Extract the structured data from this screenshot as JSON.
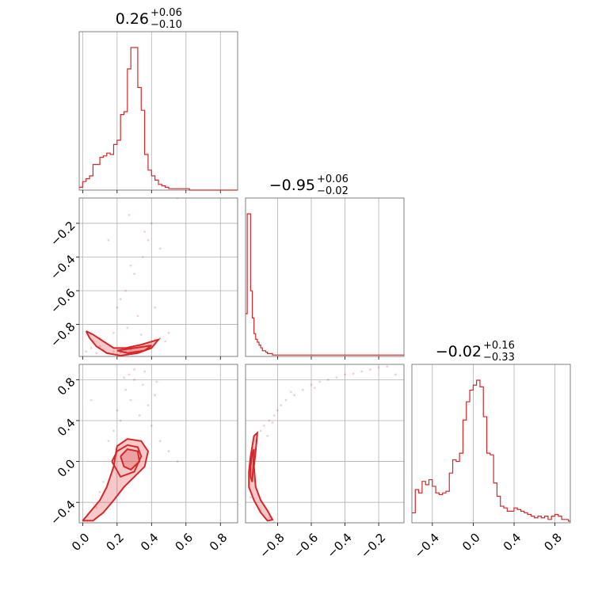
{
  "chart_data": {
    "type": "corner",
    "color": "#d62728",
    "params": [
      {
        "title": {
          "median": "0.26",
          "plus": "+0.06",
          "minus": "−0.10"
        },
        "range": [
          -0.02,
          0.9
        ],
        "ticks": [
          0.0,
          0.2,
          0.4,
          0.6,
          0.8
        ],
        "tick_labels": [
          "0.0",
          "0.2",
          "0.4",
          "0.6",
          "0.8"
        ],
        "histogram": {
          "bin_start": -0.02,
          "bin_width": 0.02,
          "counts": [
            2,
            6,
            8,
            10,
            18,
            18,
            23,
            24,
            26,
            25,
            32,
            35,
            53,
            55,
            85,
            100,
            100,
            72,
            56,
            25,
            14,
            10,
            7,
            4,
            3,
            2,
            1,
            1,
            1,
            1,
            1,
            1,
            0,
            0,
            0,
            0,
            0,
            0,
            0,
            0,
            0,
            0,
            0,
            0,
            0,
            0
          ]
        }
      },
      {
        "title": {
          "median": "−0.95",
          "plus": "+0.06",
          "minus": "−0.02"
        },
        "range": [
          -0.99,
          -0.05
        ],
        "ticks": [
          -0.8,
          -0.6,
          -0.4,
          -0.2
        ],
        "tick_labels": [
          "−0.8",
          "−0.6",
          "−0.4",
          "−0.2"
        ],
        "histogram": {
          "bin_start": -0.99,
          "bin_width": 0.01,
          "counts": [
            30,
            100,
            100,
            46,
            27,
            16,
            12,
            10,
            8,
            6,
            4,
            4,
            3,
            2,
            2,
            2,
            1,
            1,
            1,
            1,
            1,
            1,
            1,
            1,
            1,
            1,
            1,
            1,
            1,
            1,
            1,
            1,
            1,
            1,
            1,
            1,
            1,
            1,
            1,
            1,
            1,
            1,
            1,
            1,
            1,
            1,
            1,
            1,
            1,
            1,
            1,
            1,
            1,
            1,
            1,
            1,
            1,
            1,
            1,
            1,
            1,
            1,
            1,
            1,
            1,
            1,
            1,
            1,
            1,
            1,
            1,
            1,
            1,
            1,
            1,
            1,
            1,
            1,
            1,
            1,
            1,
            1,
            1,
            1,
            1,
            1,
            1,
            1,
            1,
            1,
            1,
            1,
            1,
            1
          ]
        }
      },
      {
        "title": {
          "median": "−0.02",
          "plus": "+0.16",
          "minus": "−0.33"
        },
        "range": [
          -0.6,
          0.95
        ],
        "ticks": [
          -0.4,
          0.0,
          0.4,
          0.8
        ],
        "tick_labels": [
          "−0.4",
          "0.0",
          "0.4",
          "0.8"
        ],
        "histogram": {
          "bin_start": -0.6,
          "bin_width": 0.0333,
          "counts": [
            6,
            20,
            18,
            25,
            23,
            26,
            22,
            18,
            17,
            18,
            19,
            30,
            38,
            37,
            42,
            62,
            73,
            80,
            83,
            86,
            82,
            64,
            42,
            41,
            24,
            16,
            10,
            9,
            7,
            7,
            9,
            8,
            7,
            6,
            5,
            4,
            3,
            4,
            3,
            4,
            2,
            4,
            5,
            4,
            2,
            2,
            1
          ]
        }
      }
    ],
    "pairs": [
      {
        "x_param": 0,
        "y_param": 1,
        "points": [
          [
            0.02,
            -0.96
          ],
          [
            0.05,
            -0.94
          ],
          [
            0.08,
            -0.97
          ],
          [
            0.1,
            -0.93
          ],
          [
            0.12,
            -0.95
          ],
          [
            0.15,
            -0.97
          ],
          [
            0.18,
            -0.96
          ],
          [
            0.2,
            -0.98
          ],
          [
            0.22,
            -0.97
          ],
          [
            0.25,
            -0.96
          ],
          [
            0.28,
            -0.95
          ],
          [
            0.3,
            -0.94
          ],
          [
            0.33,
            -0.93
          ],
          [
            0.35,
            -0.92
          ],
          [
            0.38,
            -0.92
          ],
          [
            0.4,
            -0.9
          ],
          [
            0.42,
            -0.89
          ],
          [
            0.45,
            -0.88
          ],
          [
            0.2,
            -0.7
          ],
          [
            0.25,
            -0.6
          ],
          [
            0.3,
            -0.5
          ],
          [
            0.35,
            -0.4
          ],
          [
            0.38,
            -0.3
          ],
          [
            0.4,
            -0.2
          ],
          [
            0.36,
            -0.25
          ],
          [
            0.28,
            -0.45
          ],
          [
            0.22,
            -0.65
          ],
          [
            0.32,
            -0.75
          ],
          [
            0.26,
            -0.82
          ],
          [
            0.18,
            -0.85
          ],
          [
            0.48,
            -0.9
          ],
          [
            0.5,
            -0.85
          ],
          [
            0.15,
            -0.3
          ],
          [
            0.45,
            -0.35
          ],
          [
            0.27,
            -0.15
          ],
          [
            0.55,
            -0.05
          ],
          [
            0.06,
            -0.9
          ],
          [
            0.1,
            -0.88
          ],
          [
            0.34,
            -0.86
          ],
          [
            0.42,
            -0.7
          ]
        ],
        "filled_contours": [
          [
            [
              0.02,
              -0.84
            ],
            [
              0.06,
              -0.86
            ],
            [
              0.12,
              -0.9
            ],
            [
              0.18,
              -0.94
            ],
            [
              0.25,
              -0.94
            ],
            [
              0.34,
              -0.92
            ],
            [
              0.44,
              -0.89
            ],
            [
              0.4,
              -0.94
            ],
            [
              0.32,
              -0.97
            ],
            [
              0.22,
              -0.985
            ],
            [
              0.14,
              -0.97
            ],
            [
              0.08,
              -0.93
            ],
            [
              0.04,
              -0.88
            ]
          ],
          [
            [
              0.2,
              -0.955
            ],
            [
              0.3,
              -0.94
            ],
            [
              0.4,
              -0.925
            ],
            [
              0.36,
              -0.955
            ],
            [
              0.26,
              -0.97
            ]
          ]
        ],
        "contour_lines": [
          [
            [
              0.02,
              -0.84
            ],
            [
              0.06,
              -0.86
            ],
            [
              0.12,
              -0.9
            ],
            [
              0.18,
              -0.94
            ],
            [
              0.25,
              -0.94
            ],
            [
              0.34,
              -0.92
            ],
            [
              0.44,
              -0.89
            ],
            [
              0.4,
              -0.94
            ],
            [
              0.32,
              -0.97
            ],
            [
              0.22,
              -0.985
            ],
            [
              0.14,
              -0.97
            ],
            [
              0.08,
              -0.93
            ],
            [
              0.04,
              -0.88
            ],
            [
              0.02,
              -0.84
            ]
          ],
          [
            [
              0.2,
              -0.955
            ],
            [
              0.3,
              -0.94
            ],
            [
              0.4,
              -0.925
            ],
            [
              0.36,
              -0.955
            ],
            [
              0.26,
              -0.97
            ],
            [
              0.2,
              -0.955
            ]
          ]
        ]
      },
      {
        "x_param": 0,
        "y_param": 2,
        "points": [
          [
            0.1,
            -0.3
          ],
          [
            0.15,
            0.2
          ],
          [
            0.2,
            0.5
          ],
          [
            0.25,
            0.7
          ],
          [
            0.3,
            0.8
          ],
          [
            0.35,
            0.75
          ],
          [
            0.28,
            0.6
          ],
          [
            0.22,
            0.4
          ],
          [
            0.18,
            0.3
          ],
          [
            0.33,
            0.45
          ],
          [
            0.4,
            0.35
          ],
          [
            0.45,
            0.2
          ],
          [
            0.38,
            0.55
          ],
          [
            0.42,
            0.65
          ],
          [
            0.3,
            0.9
          ],
          [
            0.27,
            0.85
          ],
          [
            0.08,
            -0.45
          ],
          [
            0.12,
            -0.2
          ],
          [
            0.5,
            0.1
          ],
          [
            0.55,
            0.0
          ],
          [
            0.05,
            0.6
          ],
          [
            0.36,
            0.88
          ],
          [
            0.24,
            0.82
          ],
          [
            0.43,
            0.78
          ]
        ],
        "filled_contours": [
          [
            [
              0.0,
              -0.58
            ],
            [
              0.04,
              -0.5
            ],
            [
              0.1,
              -0.38
            ],
            [
              0.14,
              -0.25
            ],
            [
              0.18,
              -0.05
            ],
            [
              0.2,
              0.15
            ],
            [
              0.26,
              0.22
            ],
            [
              0.34,
              0.2
            ],
            [
              0.38,
              0.1
            ],
            [
              0.36,
              -0.05
            ],
            [
              0.3,
              -0.15
            ],
            [
              0.24,
              -0.25
            ],
            [
              0.18,
              -0.38
            ],
            [
              0.12,
              -0.5
            ],
            [
              0.06,
              -0.58
            ]
          ],
          [
            [
              0.22,
              0.05
            ],
            [
              0.26,
              0.12
            ],
            [
              0.32,
              0.1
            ],
            [
              0.33,
              0.0
            ],
            [
              0.28,
              -0.08
            ],
            [
              0.24,
              -0.05
            ]
          ]
        ],
        "contour_lines": [
          [
            [
              0.0,
              -0.58
            ],
            [
              0.04,
              -0.5
            ],
            [
              0.1,
              -0.38
            ],
            [
              0.14,
              -0.25
            ],
            [
              0.18,
              -0.05
            ],
            [
              0.2,
              0.15
            ],
            [
              0.26,
              0.22
            ],
            [
              0.34,
              0.2
            ],
            [
              0.38,
              0.1
            ],
            [
              0.36,
              -0.05
            ],
            [
              0.3,
              -0.15
            ],
            [
              0.24,
              -0.25
            ],
            [
              0.18,
              -0.38
            ],
            [
              0.12,
              -0.5
            ],
            [
              0.06,
              -0.58
            ],
            [
              0.0,
              -0.58
            ]
          ],
          [
            [
              0.17,
              0.0
            ],
            [
              0.2,
              0.1
            ],
            [
              0.26,
              0.16
            ],
            [
              0.32,
              0.14
            ],
            [
              0.34,
              0.05
            ],
            [
              0.3,
              -0.1
            ],
            [
              0.22,
              -0.15
            ],
            [
              0.17,
              0.0
            ]
          ],
          [
            [
              0.22,
              0.05
            ],
            [
              0.26,
              0.12
            ],
            [
              0.32,
              0.1
            ],
            [
              0.33,
              0.0
            ],
            [
              0.28,
              -0.08
            ],
            [
              0.24,
              -0.05
            ],
            [
              0.22,
              0.05
            ]
          ]
        ]
      },
      {
        "x_param": 1,
        "y_param": 2,
        "points": [
          [
            -0.95,
            0.1
          ],
          [
            -0.93,
            0.2
          ],
          [
            -0.9,
            0.3
          ],
          [
            -0.88,
            0.35
          ],
          [
            -0.85,
            0.4
          ],
          [
            -0.82,
            0.45
          ],
          [
            -0.8,
            0.5
          ],
          [
            -0.78,
            0.55
          ],
          [
            -0.75,
            0.6
          ],
          [
            -0.7,
            0.65
          ],
          [
            -0.65,
            0.7
          ],
          [
            -0.6,
            0.75
          ],
          [
            -0.55,
            0.78
          ],
          [
            -0.5,
            0.8
          ],
          [
            -0.45,
            0.82
          ],
          [
            -0.4,
            0.85
          ],
          [
            -0.35,
            0.86
          ],
          [
            -0.3,
            0.88
          ],
          [
            -0.25,
            0.9
          ],
          [
            -0.2,
            0.92
          ],
          [
            -0.15,
            0.93
          ],
          [
            -0.1,
            0.85
          ],
          [
            -0.86,
            0.25
          ],
          [
            -0.83,
            0.38
          ],
          [
            -0.72,
            0.68
          ],
          [
            -0.58,
            0.72
          ],
          [
            -0.96,
            -0.35
          ],
          [
            -0.9,
            -0.48
          ],
          [
            -0.85,
            -0.55
          ],
          [
            -0.82,
            -0.6
          ]
        ],
        "filled_contours": [
          [
            [
              -0.97,
              -0.1
            ],
            [
              -0.96,
              0.05
            ],
            [
              -0.95,
              0.15
            ],
            [
              -0.94,
              0.25
            ],
            [
              -0.92,
              0.28
            ],
            [
              -0.93,
              0.1
            ],
            [
              -0.94,
              -0.05
            ],
            [
              -0.93,
              -0.25
            ],
            [
              -0.9,
              -0.38
            ],
            [
              -0.86,
              -0.48
            ],
            [
              -0.83,
              -0.57
            ],
            [
              -0.86,
              -0.58
            ],
            [
              -0.9,
              -0.5
            ],
            [
              -0.94,
              -0.38
            ],
            [
              -0.97,
              -0.25
            ]
          ]
        ],
        "contour_lines": [
          [
            [
              -0.97,
              -0.1
            ],
            [
              -0.96,
              0.05
            ],
            [
              -0.95,
              0.15
            ],
            [
              -0.94,
              0.25
            ],
            [
              -0.92,
              0.28
            ],
            [
              -0.93,
              0.1
            ],
            [
              -0.94,
              -0.05
            ],
            [
              -0.93,
              -0.25
            ],
            [
              -0.9,
              -0.38
            ],
            [
              -0.86,
              -0.48
            ],
            [
              -0.83,
              -0.57
            ],
            [
              -0.86,
              -0.58
            ],
            [
              -0.9,
              -0.5
            ],
            [
              -0.94,
              -0.38
            ],
            [
              -0.97,
              -0.25
            ],
            [
              -0.97,
              -0.1
            ]
          ],
          [
            [
              -0.96,
              -0.05
            ],
            [
              -0.95,
              0.08
            ],
            [
              -0.94,
              0.12
            ],
            [
              -0.945,
              -0.05
            ],
            [
              -0.95,
              -0.2
            ],
            [
              -0.96,
              -0.15
            ],
            [
              -0.96,
              -0.05
            ]
          ]
        ]
      }
    ]
  }
}
